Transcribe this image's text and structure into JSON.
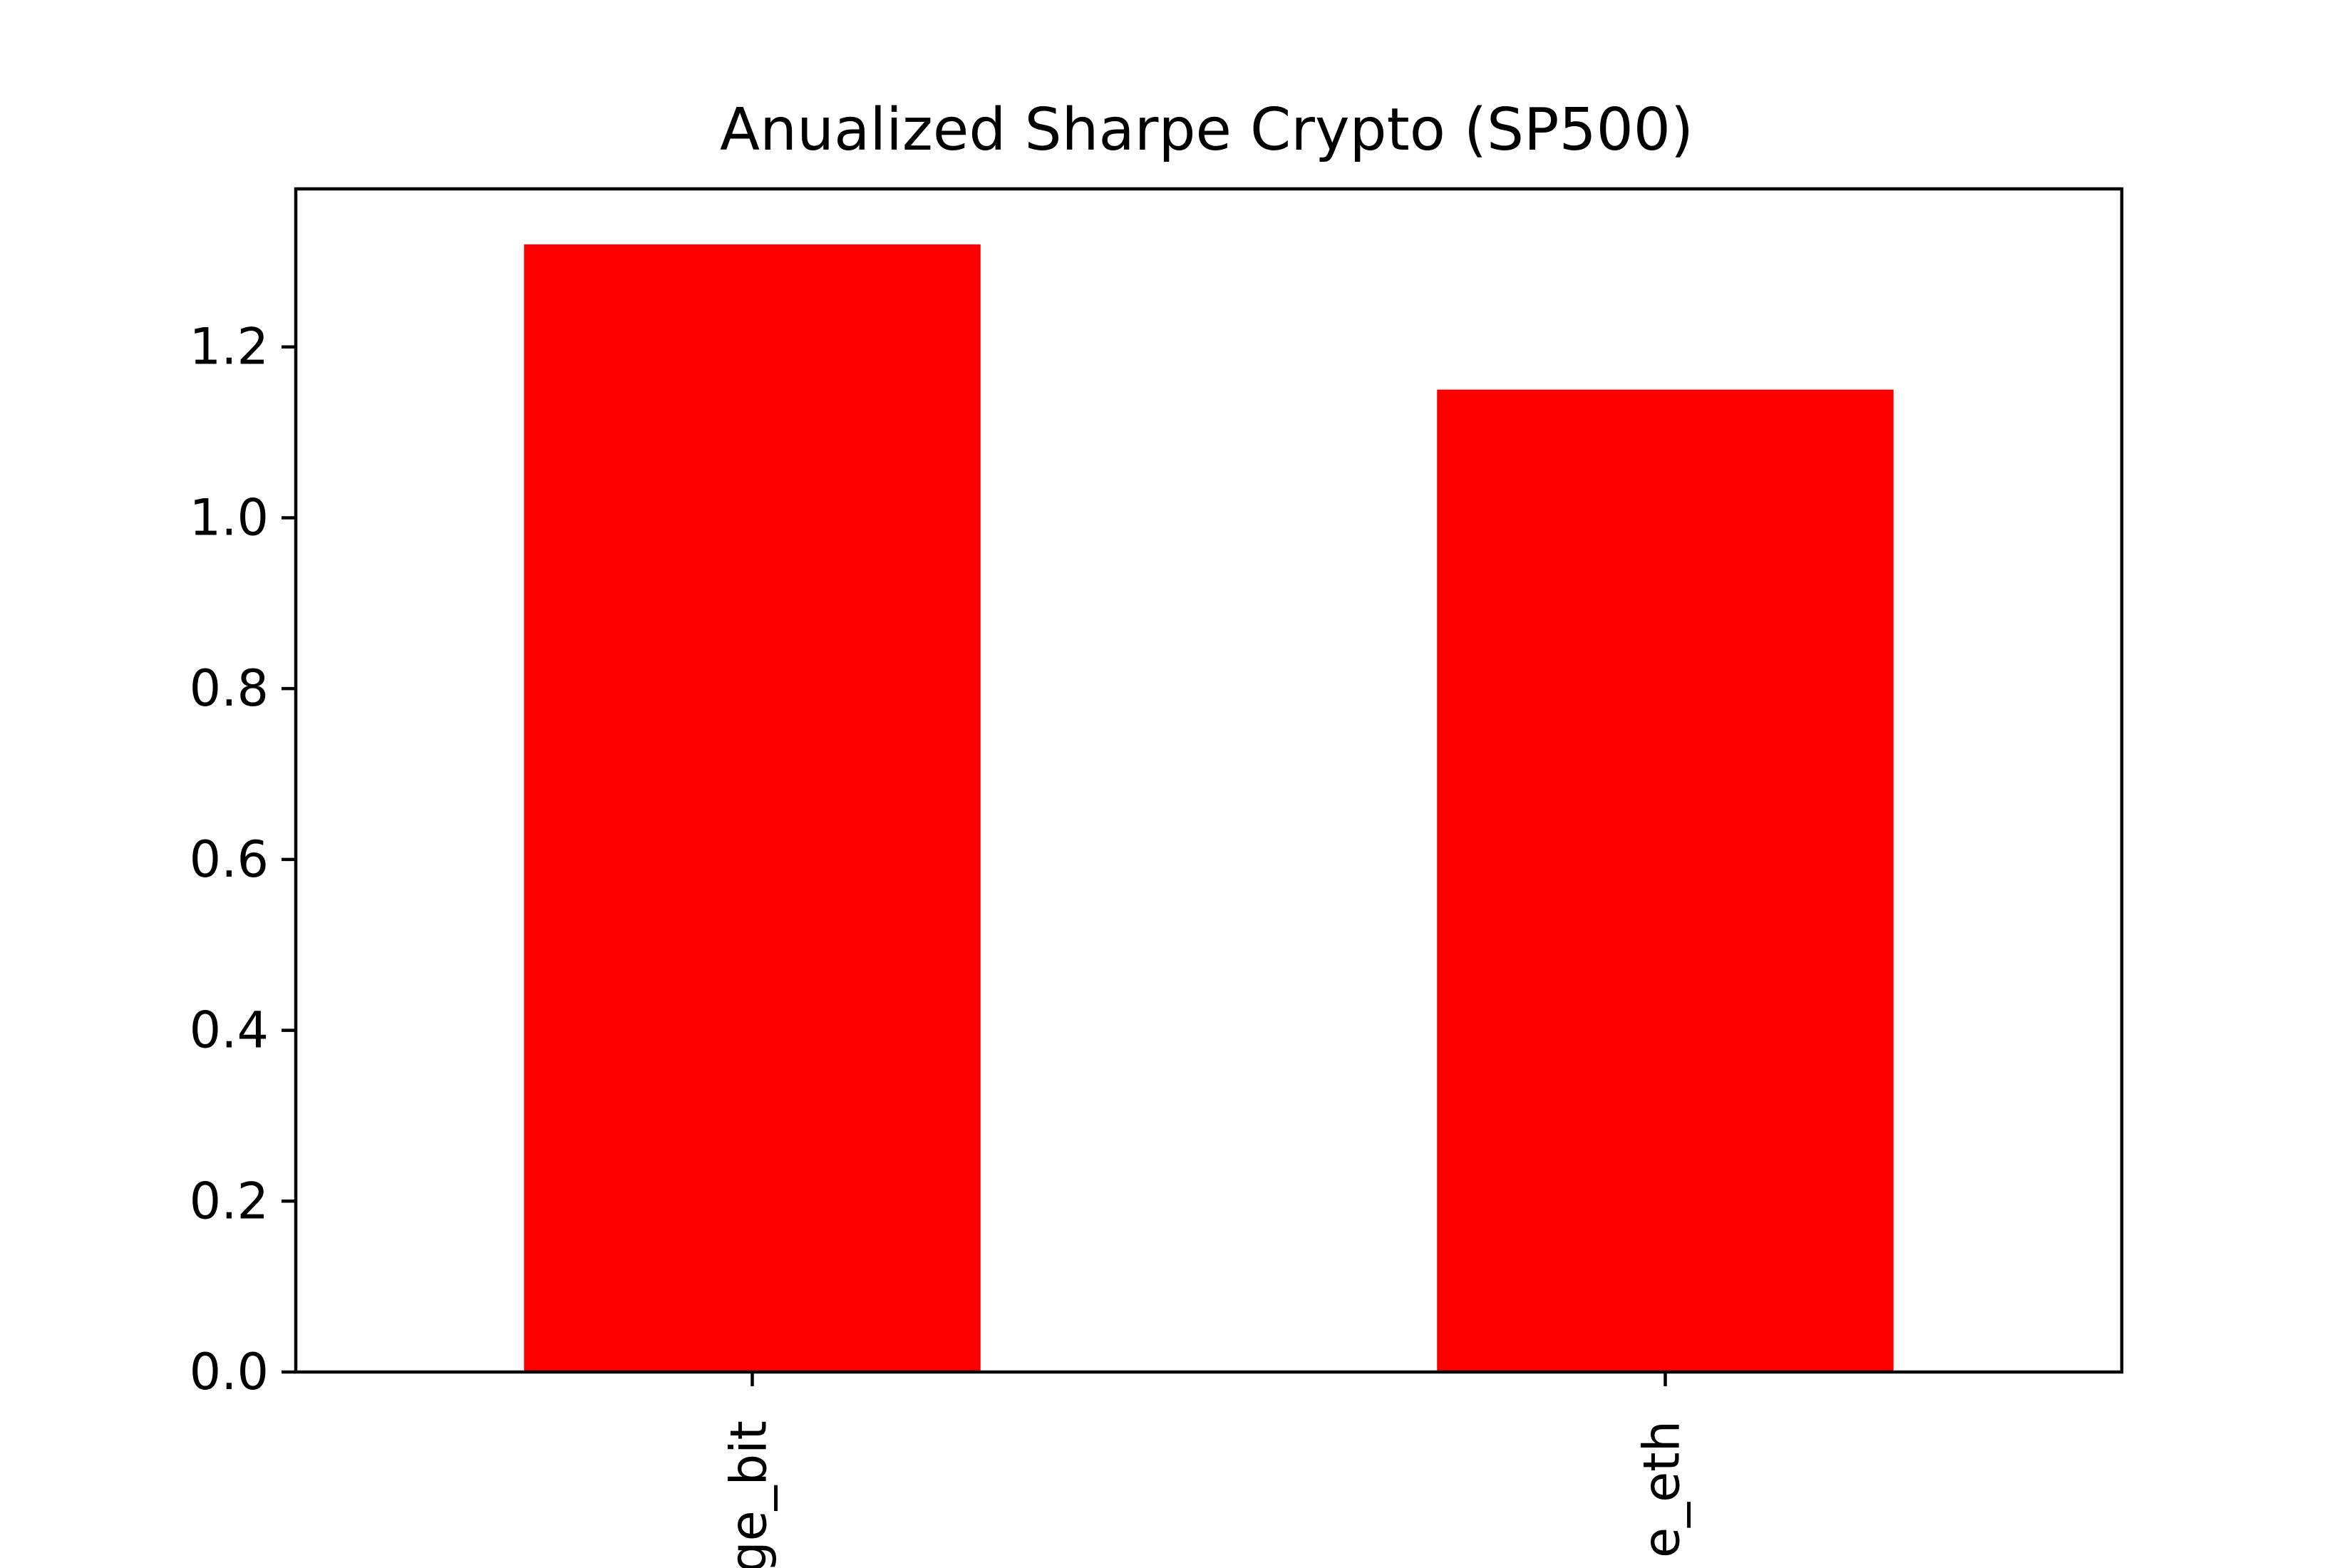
{
  "chart_data": {
    "type": "bar",
    "title": "Anualized Sharpe Crypto (SP500)",
    "xlabel": "",
    "ylabel": "",
    "categories": [
      "ge_bit",
      "e_eth"
    ],
    "values": [
      1.32,
      1.15
    ],
    "ylim": [
      0,
      1.385
    ],
    "yticks": [
      0.0,
      0.2,
      0.4,
      0.6,
      0.8,
      1.0,
      1.2
    ],
    "ytick_labels": [
      "0.0",
      "0.2",
      "0.4",
      "0.6",
      "0.8",
      "1.0",
      "1.2"
    ],
    "bar_color": "#ff0000",
    "grid": false,
    "legend": "none"
  }
}
